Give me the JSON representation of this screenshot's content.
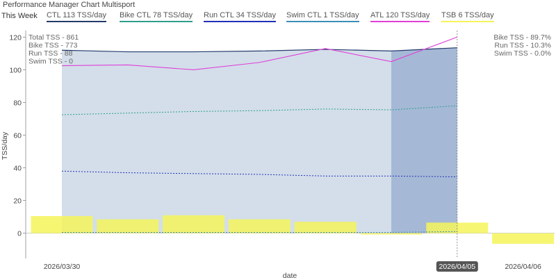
{
  "title": "Performance Manager Chart Multisport",
  "legend": {
    "week_label": "This Week",
    "items": [
      {
        "key": "ctl",
        "label": "CTL  113 TSS/day",
        "color": "#233a6b"
      },
      {
        "key": "bike_ctl",
        "label": "Bike CTL  78 TSS/day",
        "color": "#2e9e8b"
      },
      {
        "key": "run_ctl",
        "label": "Run CTL  34 TSS/day",
        "color": "#2230b8"
      },
      {
        "key": "swim_ctl",
        "label": "Swim CTL  1 TSS/day",
        "color": "#3a8fb5"
      },
      {
        "key": "atl",
        "label": "ATL  120 TSS/day",
        "color": "#e040d8"
      },
      {
        "key": "tsb",
        "label": "TSB  6 TSS/day",
        "color": "#f5f55a"
      }
    ]
  },
  "stats_left": [
    "Total TSS - 861",
    "Bike TSS - 773",
    "Run TSS - 88",
    "Swim TSS - 0"
  ],
  "stats_right": [
    "Bike TSS - 89.7%",
    "Run TSS - 10.3%",
    "Swim TSS - 0.0%"
  ],
  "current_date_label": "2026/04/05",
  "chart_data": {
    "type": "line",
    "title": "Performance Manager Chart Multisport",
    "xlabel": "date",
    "ylabel": "TSS/day",
    "ylim": [
      -18,
      124
    ],
    "yticks": [
      0,
      20,
      40,
      60,
      80,
      100,
      120
    ],
    "grid": false,
    "x_dates": [
      "2026/03/30",
      "2026/03/31",
      "2026/04/01",
      "2026/04/02",
      "2026/04/03",
      "2026/04/04",
      "2026/04/05",
      "2026/04/06"
    ],
    "x_tick_labels": [
      "2026/03/30",
      "2026/04/05",
      "2026/04/06"
    ],
    "series": [
      {
        "name": "CTL",
        "style": "area",
        "color": "#233a6b",
        "values": [
          112,
          111,
          111,
          111.5,
          112.5,
          111.5,
          113.5,
          null
        ]
      },
      {
        "name": "ATL",
        "style": "line",
        "color": "#e040d8",
        "values": [
          102.5,
          103,
          100,
          104.5,
          113,
          105,
          120,
          null
        ]
      },
      {
        "name": "Bike CTL",
        "style": "dotted",
        "color": "#2e9e8b",
        "values": [
          72.5,
          73.5,
          74.5,
          75,
          76,
          75.5,
          78,
          null
        ]
      },
      {
        "name": "Run CTL",
        "style": "dotted",
        "color": "#2230b8",
        "values": [
          38,
          37,
          36.5,
          36,
          35,
          35,
          34.5,
          null
        ]
      },
      {
        "name": "Swim CTL",
        "style": "dotted",
        "color": "#3a8fb5",
        "values": [
          0.5,
          0.5,
          0.5,
          0.5,
          0.5,
          0.5,
          1,
          null
        ]
      },
      {
        "name": "TSB",
        "style": "bar",
        "color": "#f5f55a",
        "values": [
          10.5,
          8.5,
          11,
          8.5,
          7,
          -0.8,
          6.5,
          -6.5
        ]
      }
    ]
  }
}
